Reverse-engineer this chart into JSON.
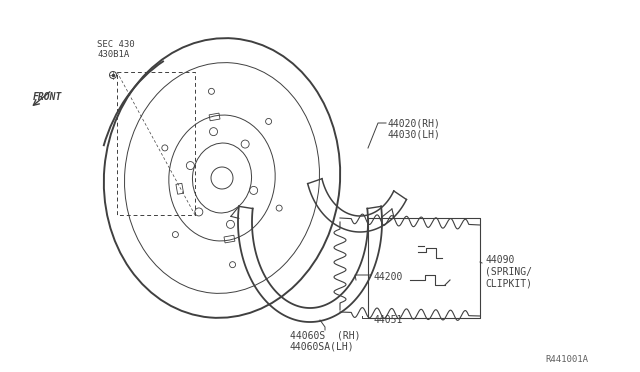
{
  "background_color": "#ffffff",
  "fig_width": 6.4,
  "fig_height": 3.72,
  "dpi": 100,
  "labels": {
    "front_label": "FRONT",
    "sec_label": "SEC 430\n430B1A",
    "part_44020": "44020(RH)\n44030(LH)",
    "part_44060": "44060S  (RH)\n44060SA(LH)",
    "part_44051": "44051",
    "part_44200": "44200",
    "part_44090": "44090\n(SPRING/\nCLIPKIT)",
    "ref_label": "R441001A"
  },
  "text_color": "#404040",
  "line_color": "#404040"
}
